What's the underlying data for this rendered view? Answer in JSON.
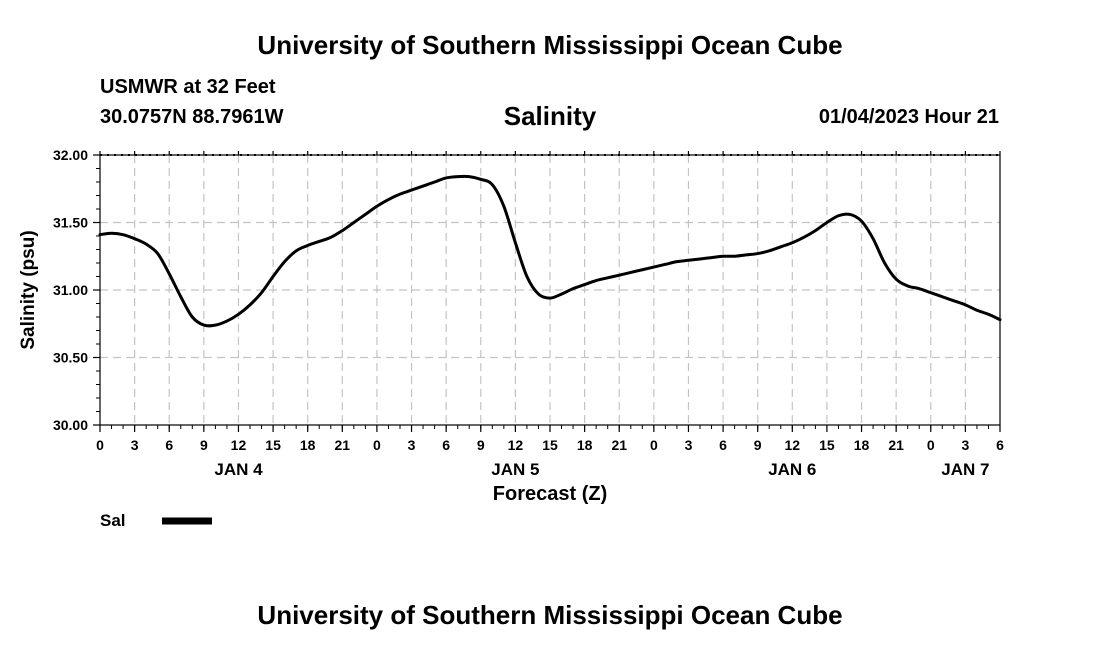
{
  "header": {
    "main_title": "University of Southern Mississippi Ocean Cube",
    "station": "USMWR at 32 Feet",
    "coords": "30.0757N  88.7961W",
    "datetime": "01/04/2023 Hour 21"
  },
  "footer": {
    "title": "University of Southern Mississippi Ocean Cube"
  },
  "chart_data": {
    "type": "line",
    "title": "Salinity",
    "xlabel": "Forecast (Z)",
    "ylabel": "Salinity (psu)",
    "ylim": [
      30.0,
      32.0
    ],
    "yticks": [
      "30.00",
      "30.50",
      "31.00",
      "31.50",
      "32.00"
    ],
    "x_unit": "forecast hour from 00Z JAN 4",
    "xlim": [
      0,
      78
    ],
    "xtick_labels": [
      "0",
      "3",
      "6",
      "9",
      "12",
      "15",
      "18",
      "21",
      "0",
      "3",
      "6",
      "9",
      "12",
      "15",
      "18",
      "21",
      "0",
      "3",
      "6",
      "9",
      "12",
      "15",
      "18",
      "21",
      "0",
      "3",
      "6"
    ],
    "day_labels": [
      {
        "label": "JAN 4",
        "x": 12
      },
      {
        "label": "JAN 5",
        "x": 36
      },
      {
        "label": "JAN 6",
        "x": 60
      },
      {
        "label": "JAN 7",
        "x": 75
      }
    ],
    "grid": true,
    "legend": [
      {
        "name": "Sal",
        "position": "bottom-left"
      }
    ],
    "series": [
      {
        "name": "Sal",
        "color": "#000000",
        "x": [
          0,
          1,
          2,
          3,
          4,
          5,
          6,
          7,
          8,
          9,
          10,
          11,
          12,
          13,
          14,
          15,
          16,
          17,
          18,
          19,
          20,
          21,
          22,
          23,
          24,
          25,
          26,
          27,
          28,
          29,
          30,
          31,
          32,
          33,
          34,
          35,
          36,
          37,
          38,
          39,
          40,
          41,
          42,
          43,
          44,
          45,
          46,
          47,
          48,
          49,
          50,
          51,
          52,
          53,
          54,
          55,
          56,
          57,
          58,
          59,
          60,
          61,
          62,
          63,
          64,
          65,
          66,
          67,
          68,
          69,
          70,
          71,
          72,
          73,
          74,
          75,
          76,
          77,
          78
        ],
        "values": [
          31.41,
          31.42,
          31.41,
          31.38,
          31.34,
          31.27,
          31.12,
          30.95,
          30.8,
          30.74,
          30.74,
          30.77,
          30.82,
          30.89,
          30.98,
          31.1,
          31.21,
          31.29,
          31.33,
          31.36,
          31.39,
          31.44,
          31.5,
          31.56,
          31.62,
          31.67,
          31.71,
          31.74,
          31.77,
          31.8,
          31.83,
          31.84,
          31.84,
          31.82,
          31.78,
          31.62,
          31.35,
          31.1,
          30.97,
          30.94,
          30.97,
          31.01,
          31.04,
          31.07,
          31.09,
          31.11,
          31.13,
          31.15,
          31.17,
          31.19,
          31.21,
          31.22,
          31.23,
          31.24,
          31.25,
          31.25,
          31.26,
          31.27,
          31.29,
          31.32,
          31.35,
          31.39,
          31.44,
          31.5,
          31.55,
          31.56,
          31.51,
          31.38,
          31.2,
          31.08,
          31.03,
          31.01,
          30.98,
          30.95,
          30.92,
          30.89,
          30.85,
          30.82,
          30.78
        ]
      }
    ]
  }
}
